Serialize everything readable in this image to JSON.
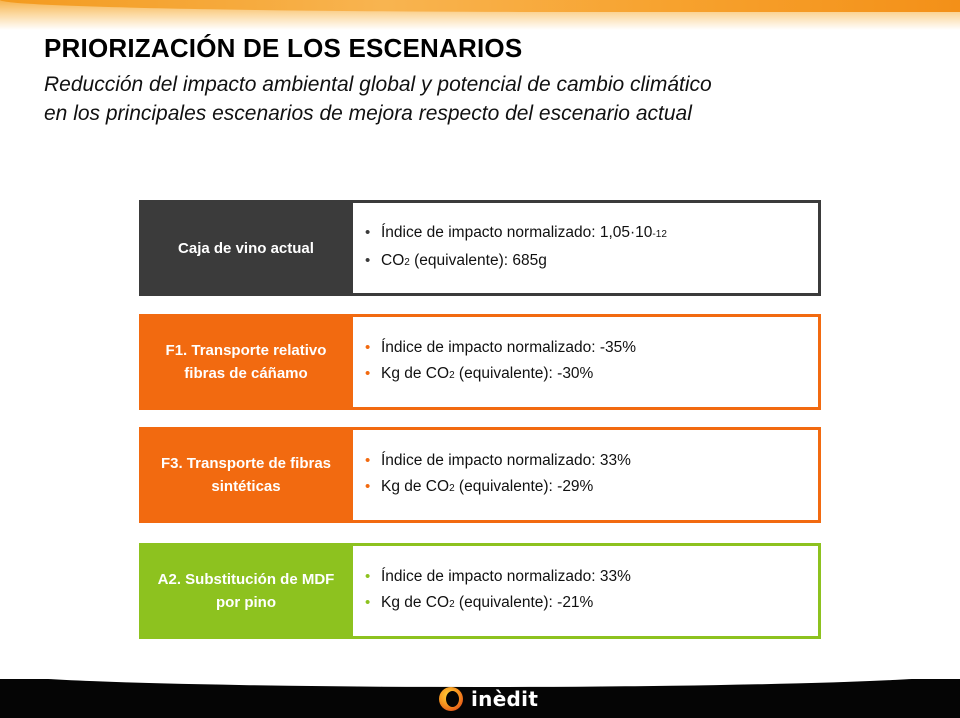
{
  "header": {
    "title": "PRIORIZACIÓN DE LOS ESCENARIOS",
    "subtitle_line1": "Reducción del impacto ambiental global y potencial de cambio climático",
    "subtitle_line2": "en los principales escenarios de mejora respecto del escenario actual"
  },
  "scenarios": [
    {
      "label": "Caja de vino actual",
      "color": "#3b3b3b",
      "b1_text": "Índice de impacto normalizado: 1,05·10",
      "b1_sup": "-12",
      "b2_pre": "CO",
      "b2_sub": "2",
      "b2_post": " (equivalente): 685g"
    },
    {
      "label": "F1. Transporte relativo fibras de cáñamo",
      "color": "#f26a10",
      "b1_text": "Índice de impacto normalizado: -35%",
      "b2_pre": "Kg de CO",
      "b2_sub": "2",
      "b2_post": " (equivalente): -30%"
    },
    {
      "label": "F3. Transporte de fibras sintéticas",
      "color": "#f26a10",
      "b1_text": "Índice de impacto normalizado: 33%",
      "b2_pre": "Kg de CO",
      "b2_sub": "2",
      "b2_post": " (equivalente): -29%"
    },
    {
      "label": "A2. Substitución de MDF por pino",
      "color": "#8dc21f",
      "b1_text": "Índice de impacto normalizado: 33%",
      "b2_pre": "Kg de CO",
      "b2_sub": "2",
      "b2_post": " (equivalente): -21%"
    }
  ],
  "bullet_char": "•",
  "footer": {
    "logo_text": "inèdit",
    "logo_icon": "inedit-ring-icon"
  }
}
